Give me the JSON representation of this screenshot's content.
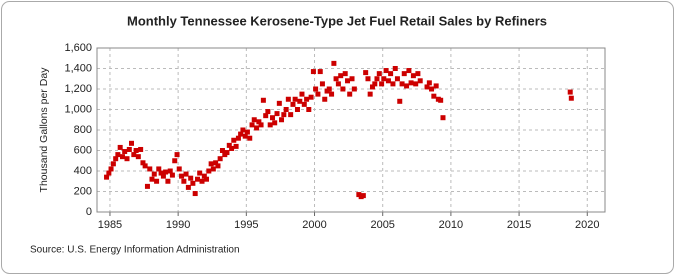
{
  "chart_data": {
    "type": "scatter",
    "title": "Monthly Tennessee Kerosene-Type Jet Fuel Retail Sales by Refiners",
    "y_label": "Thousand Gallons per Day",
    "source": "Source: U.S. Energy Information Administration",
    "x": [
      1984.75,
      1984.92,
      1985.08,
      1985.25,
      1985.42,
      1985.58,
      1985.75,
      1985.92,
      1986.08,
      1986.25,
      1986.42,
      1986.58,
      1986.75,
      1986.92,
      1987.08,
      1987.25,
      1987.42,
      1987.58,
      1987.75,
      1987.92,
      1988.08,
      1988.25,
      1988.42,
      1988.58,
      1988.75,
      1988.92,
      1989.08,
      1989.25,
      1989.42,
      1989.58,
      1989.75,
      1989.92,
      1990.08,
      1990.25,
      1990.42,
      1990.58,
      1990.75,
      1990.92,
      1991.08,
      1991.25,
      1991.42,
      1991.58,
      1991.75,
      1991.92,
      1992.08,
      1992.25,
      1992.42,
      1992.58,
      1992.75,
      1992.92,
      1993.08,
      1993.25,
      1993.42,
      1993.58,
      1993.75,
      1993.92,
      1994.08,
      1994.25,
      1994.42,
      1994.58,
      1994.75,
      1994.92,
      1995.08,
      1995.25,
      1995.42,
      1995.58,
      1995.75,
      1995.92,
      1996.08,
      1996.25,
      1996.42,
      1996.58,
      1996.75,
      1996.92,
      1997.08,
      1997.25,
      1997.42,
      1997.58,
      1997.75,
      1997.92,
      1998.08,
      1998.25,
      1998.42,
      1998.58,
      1998.75,
      1998.92,
      1999.08,
      1999.25,
      1999.42,
      1999.58,
      1999.75,
      1999.92,
      2000.08,
      2000.25,
      2000.42,
      2000.58,
      2000.75,
      2000.92,
      2001.08,
      2001.25,
      2001.42,
      2001.58,
      2001.75,
      2001.92,
      2002.08,
      2002.25,
      2002.42,
      2002.58,
      2002.75,
      2002.92,
      2003.25,
      2003.42,
      2003.58,
      2003.75,
      2003.92,
      2004.08,
      2004.25,
      2004.42,
      2004.58,
      2004.75,
      2004.92,
      2005.08,
      2005.25,
      2005.42,
      2005.58,
      2005.75,
      2005.92,
      2006.08,
      2006.25,
      2006.42,
      2006.58,
      2006.75,
      2006.92,
      2007.08,
      2007.25,
      2007.42,
      2007.58,
      2007.75,
      2008.25,
      2008.42,
      2008.58,
      2008.75,
      2008.92,
      2009.08,
      2009.25,
      2009.42,
      2018.75,
      2018.83
    ],
    "series": [
      {
        "color": "#cc0000",
        "values": [
          340,
          380,
          420,
          470,
          520,
          560,
          630,
          540,
          590,
          520,
          610,
          670,
          560,
          600,
          540,
          610,
          480,
          450,
          250,
          420,
          320,
          370,
          300,
          420,
          380,
          350,
          390,
          300,
          400,
          360,
          500,
          560,
          420,
          350,
          300,
          370,
          240,
          330,
          280,
          180,
          320,
          380,
          300,
          350,
          320,
          400,
          470,
          420,
          480,
          450,
          520,
          600,
          560,
          580,
          650,
          620,
          700,
          640,
          720,
          760,
          800,
          740,
          780,
          720,
          850,
          900,
          820,
          880,
          850,
          1090,
          940,
          980,
          850,
          920,
          870,
          960,
          1060,
          900,
          950,
          1000,
          1100,
          950,
          1050,
          1100,
          1000,
          1080,
          1150,
          1050,
          1100,
          1000,
          1120,
          1370,
          1200,
          1150,
          1370,
          1250,
          1100,
          1180,
          1200,
          1150,
          1450,
          1300,
          1250,
          1330,
          1200,
          1350,
          1280,
          1150,
          1300,
          1200,
          170,
          150,
          160,
          1360,
          1300,
          1150,
          1220,
          1250,
          1300,
          1350,
          1250,
          1300,
          1380,
          1280,
          1350,
          1250,
          1400,
          1300,
          1080,
          1250,
          1350,
          1230,
          1380,
          1260,
          1330,
          1250,
          1350,
          1280,
          1220,
          1260,
          1200,
          1130,
          1230,
          1100,
          1090,
          920,
          1170,
          1110
        ]
      }
    ],
    "xlim": [
      1984.05,
      2021.3
    ],
    "ylim": [
      0,
      1600
    ],
    "xticks": [
      1985,
      1990,
      1995,
      2000,
      2005,
      2010,
      2015,
      2020
    ],
    "yticks": [
      0,
      200,
      400,
      600,
      800,
      {
        "value": 1000,
        "label": "1,000"
      },
      {
        "value": 1200,
        "label": "1,200"
      },
      {
        "value": 1400,
        "label": "1,400"
      },
      {
        "value": 1600,
        "label": "1,600"
      }
    ],
    "grid": true
  }
}
